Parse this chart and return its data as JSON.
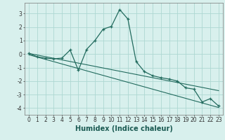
{
  "xlabel": "Humidex (Indice chaleur)",
  "x": [
    0,
    1,
    2,
    3,
    4,
    5,
    6,
    7,
    8,
    9,
    10,
    11,
    12,
    13,
    14,
    15,
    16,
    17,
    18,
    19,
    20,
    21,
    22,
    23
  ],
  "y_main": [
    0.05,
    -0.2,
    -0.3,
    -0.35,
    -0.3,
    0.3,
    -1.2,
    0.35,
    1.0,
    1.85,
    2.05,
    3.3,
    2.6,
    -0.55,
    -1.3,
    -1.6,
    -1.75,
    -1.85,
    -2.0,
    -2.5,
    -2.6,
    -3.55,
    -3.3,
    -3.85
  ],
  "y_line1": [
    0.05,
    -0.07,
    -0.19,
    -0.31,
    -0.43,
    -0.55,
    -0.67,
    -0.79,
    -0.91,
    -1.03,
    -1.15,
    -1.27,
    -1.39,
    -1.51,
    -1.63,
    -1.75,
    -1.87,
    -1.99,
    -2.11,
    -2.23,
    -2.35,
    -2.47,
    -2.59,
    -2.71
  ],
  "y_line2": [
    -0.05,
    -0.22,
    -0.39,
    -0.56,
    -0.73,
    -0.9,
    -1.07,
    -1.24,
    -1.41,
    -1.58,
    -1.75,
    -1.92,
    -2.09,
    -2.26,
    -2.43,
    -2.6,
    -2.77,
    -2.94,
    -3.11,
    -3.28,
    -3.45,
    -3.62,
    -3.79,
    -3.96
  ],
  "color": "#226b5e",
  "bg_color": "#d8f0ed",
  "grid_color": "#aed8d2",
  "ylim": [
    -4.5,
    3.8
  ],
  "xlim": [
    -0.5,
    23.5
  ],
  "yticks": [
    -4,
    -3,
    -2,
    -1,
    0,
    1,
    2,
    3
  ],
  "xticks": [
    0,
    1,
    2,
    3,
    4,
    5,
    6,
    7,
    8,
    9,
    10,
    11,
    12,
    13,
    14,
    15,
    16,
    17,
    18,
    19,
    20,
    21,
    22,
    23
  ],
  "xlabel_fontsize": 7,
  "xlabel_color": "#1a5a52",
  "tick_fontsize": 5.5,
  "linewidth_main": 0.9,
  "linewidth_reg": 0.8,
  "marker_size": 3.5,
  "marker_ew": 0.9
}
